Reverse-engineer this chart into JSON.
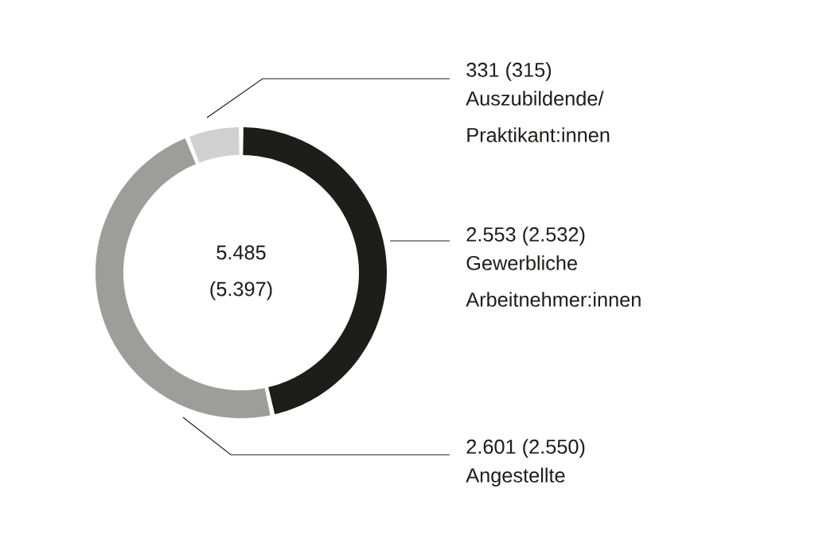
{
  "chart_data": {
    "type": "donut",
    "categories": [
      "Gewerbliche Arbeitnehmer:innen",
      "Angestellte",
      "Auszubildende/ Praktikant:innen"
    ],
    "values": [
      2553,
      2601,
      331
    ],
    "colors": [
      "#1d1d1b",
      "#9d9d9c",
      "#d0d0d0"
    ],
    "value_labels": [
      "2.553 (2.532)",
      "2.601 (2.550)",
      "331 (315)"
    ],
    "annotations": [
      "5.485 (5.397)"
    ]
  }
}
